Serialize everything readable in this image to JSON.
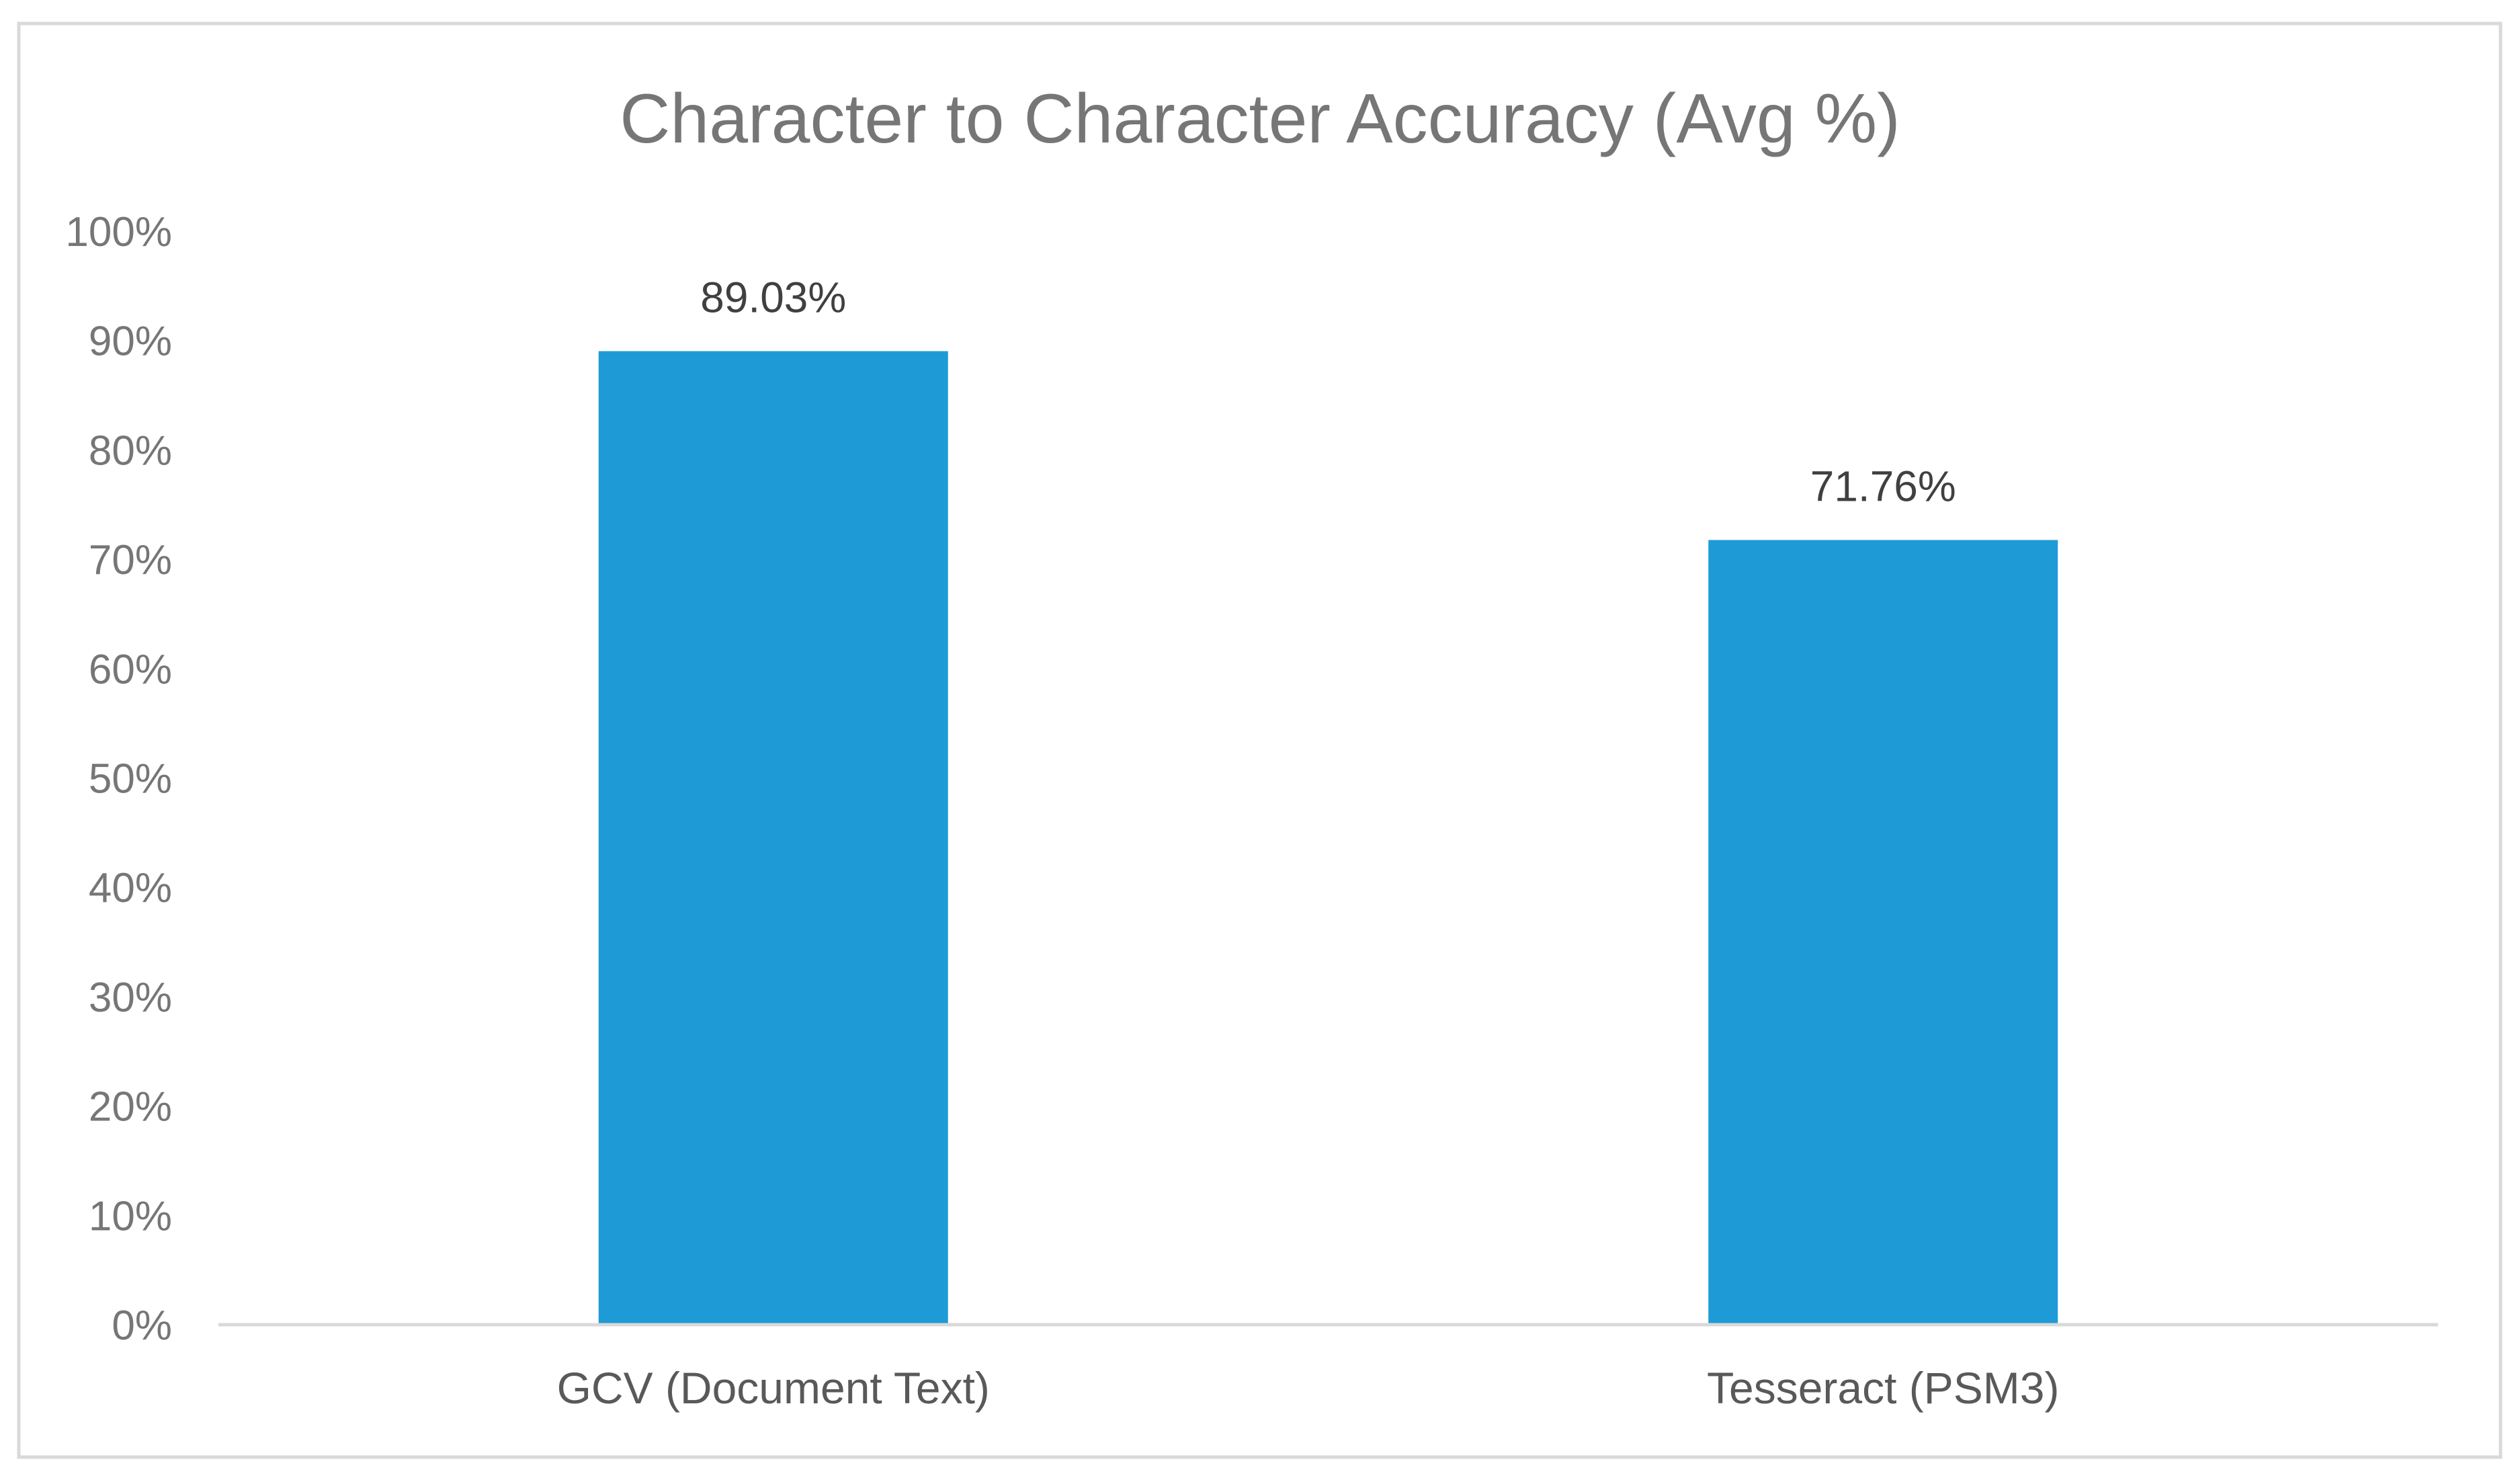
{
  "chart_data": {
    "type": "bar",
    "title": "Character to Character Accuracy (Avg %)",
    "xlabel": "",
    "ylabel": "",
    "categories": [
      "GCV (Document Text)",
      "Tesseract (PSM3)"
    ],
    "values": [
      89.03,
      71.76
    ],
    "value_labels": [
      "89.03%",
      "71.76%"
    ],
    "ylim": [
      0,
      100
    ],
    "yticks": [
      0,
      10,
      20,
      30,
      40,
      50,
      60,
      70,
      80,
      90,
      100
    ],
    "ytick_labels": [
      "0%",
      "10%",
      "20%",
      "30%",
      "40%",
      "50%",
      "60%",
      "70%",
      "80%",
      "90%",
      "100%"
    ],
    "grid": false,
    "legend": "none",
    "colors": {
      "bar": "#1E9BD7",
      "axis": "#D9D9D9",
      "border": "#D9D9D9",
      "title": "#767676",
      "tick": "#767676",
      "category": "#595959",
      "value_label": "#404040"
    }
  }
}
